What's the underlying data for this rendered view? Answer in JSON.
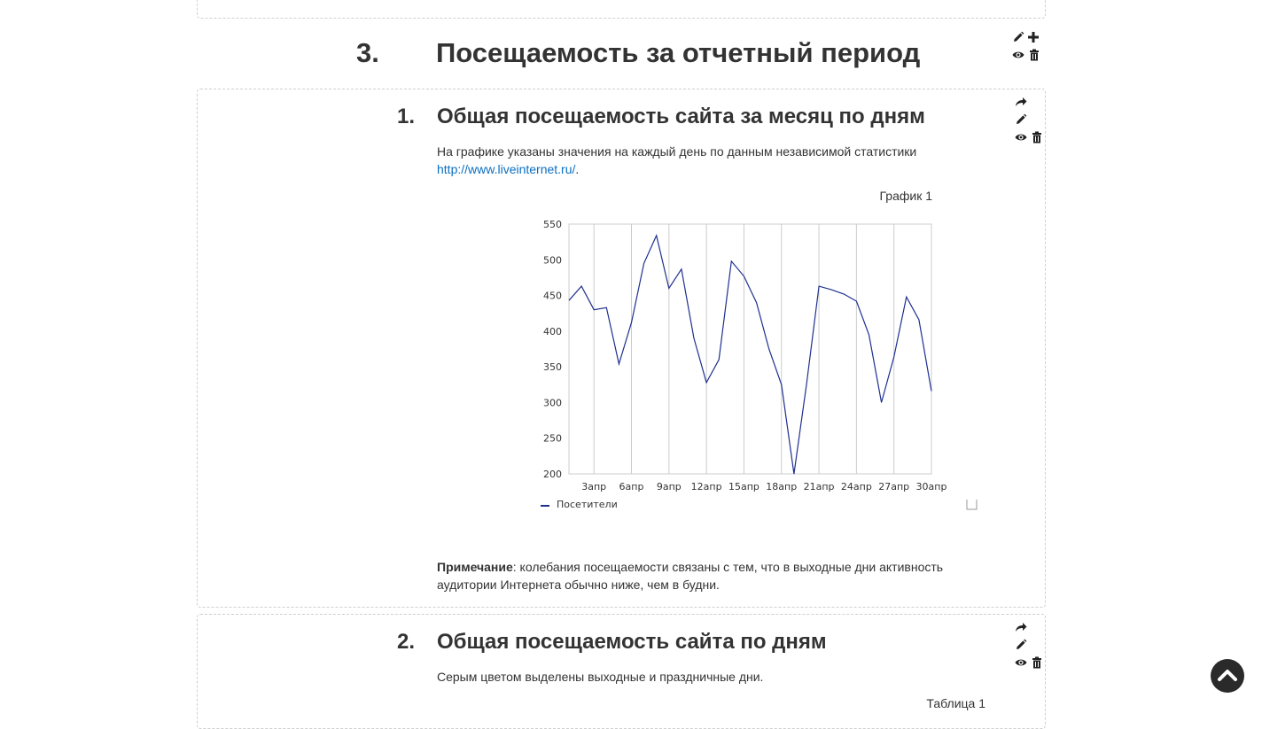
{
  "section": {
    "number": "3.",
    "title": "Посещаемость за отчетный период"
  },
  "sub1": {
    "number": "1.",
    "title": "Общая посещаемость сайта за месяц по дням",
    "text": "На графике указаны значения на каждый день по данным независимой статистики",
    "link": "http://www.liveinternet.ru/",
    "link_suffix": ".",
    "chart_caption": "График 1",
    "note_label": "Примечание",
    "note_text": ": колебания посещаемости связаны с тем, что в выходные дни активность аудитории Интернета обычно ниже, чем в будни."
  },
  "sub2": {
    "number": "2.",
    "title": "Общая посещаемость сайта по дням",
    "text": "Серым цветом выделены выходные и праздничные дни.",
    "table_caption": "Таблица 1"
  },
  "icons": {
    "edit": "pencil-icon",
    "add": "plus-icon",
    "view": "eye-icon",
    "delete": "trash-icon",
    "move": "share-arrow-icon",
    "scroll_top": "chevron-up-icon"
  },
  "colors": {
    "series": "#1f2f8f",
    "grid": "#cccccc",
    "link": "#0b6fc2",
    "text": "#333333"
  },
  "chart_data": {
    "type": "line",
    "x": [
      "1апр",
      "2апр",
      "3апр",
      "4апр",
      "5апр",
      "6апр",
      "7апр",
      "8апр",
      "9апр",
      "10апр",
      "11апр",
      "12апр",
      "13апр",
      "14апр",
      "15апр",
      "16апр",
      "17апр",
      "18апр",
      "19апр",
      "20апр",
      "21апр",
      "22апр",
      "23апр",
      "24апр",
      "25апр",
      "26апр",
      "27апр",
      "28апр",
      "29апр",
      "30апр"
    ],
    "xticks": [
      "3апр",
      "6апр",
      "9апр",
      "12апр",
      "15апр",
      "18апр",
      "21апр",
      "24апр",
      "27апр",
      "30апр"
    ],
    "series": [
      {
        "name": "Посетители",
        "values": [
          443,
          463,
          430,
          433,
          354,
          412,
          495,
          534,
          460,
          487,
          390,
          328,
          360,
          498,
          477,
          440,
          375,
          325,
          200,
          325,
          463,
          458,
          452,
          442,
          395,
          300,
          364,
          448,
          416,
          316
        ]
      }
    ],
    "ylim": [
      200,
      550
    ],
    "yticks": [
      "550",
      "500",
      "450",
      "400",
      "350",
      "300",
      "250",
      "200"
    ],
    "grid": "vertical",
    "legend": "bottom-left"
  }
}
